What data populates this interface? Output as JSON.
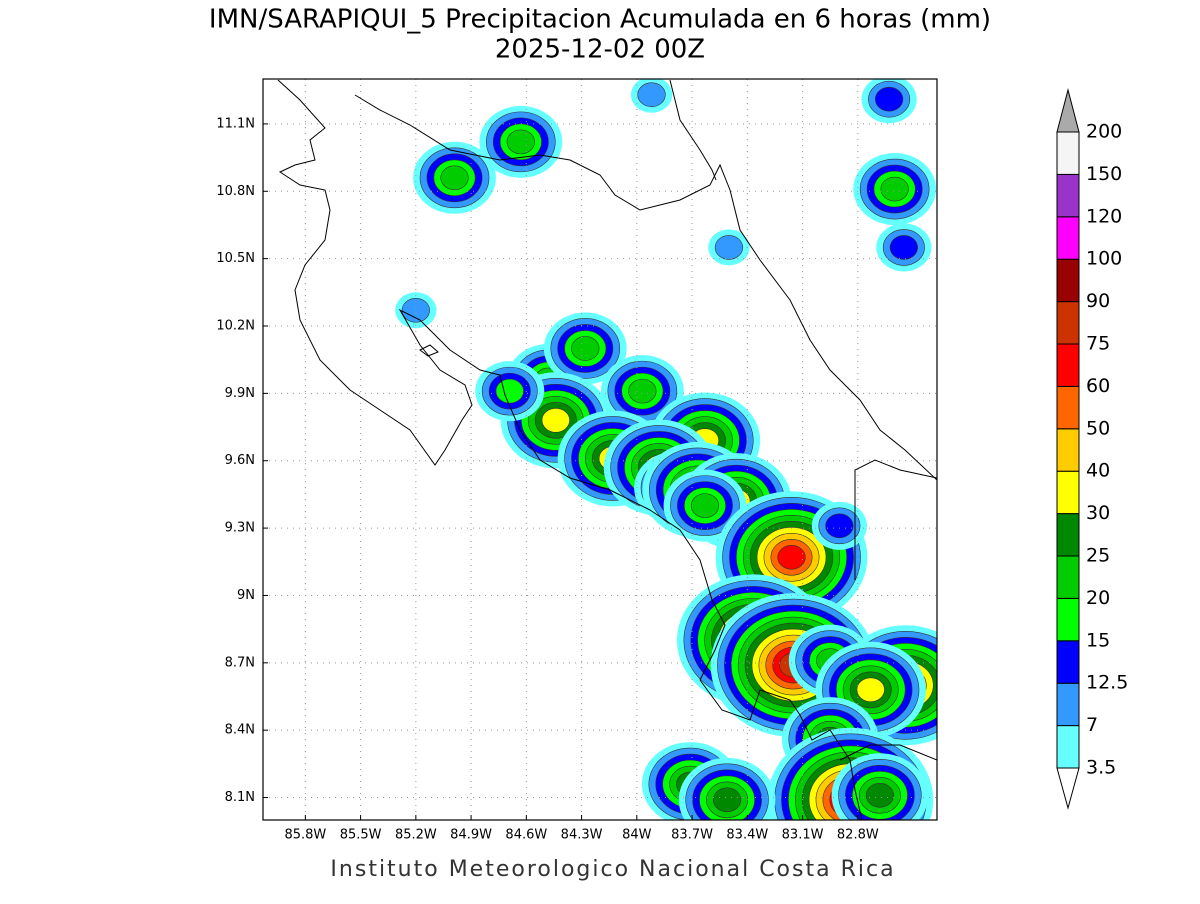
{
  "chart_data": {
    "type": "contour_map",
    "title": "IMN/SARAPIQUI_5 Precipitacion Acumulada en 6 horas (mm)",
    "subtitle": "2025-12-02 00Z",
    "footer": "Instituto Meteorologico Nacional Costa Rica",
    "xlim": [
      -86.03,
      -82.37
    ],
    "ylim": [
      8.0,
      11.3
    ],
    "xticks": [
      {
        "value": -85.8,
        "label": "85.8W"
      },
      {
        "value": -85.5,
        "label": "85.5W"
      },
      {
        "value": -85.2,
        "label": "85.2W"
      },
      {
        "value": -84.9,
        "label": "84.9W"
      },
      {
        "value": -84.6,
        "label": "84.6W"
      },
      {
        "value": -84.3,
        "label": "84.3W"
      },
      {
        "value": -84.0,
        "label": "84W"
      },
      {
        "value": -83.7,
        "label": "83.7W"
      },
      {
        "value": -83.4,
        "label": "83.4W"
      },
      {
        "value": -83.1,
        "label": "83.1W"
      },
      {
        "value": -82.8,
        "label": "82.8W"
      }
    ],
    "yticks": [
      {
        "value": 8.1,
        "label": "8.1N"
      },
      {
        "value": 8.4,
        "label": "8.4N"
      },
      {
        "value": 8.7,
        "label": "8.7N"
      },
      {
        "value": 9.0,
        "label": "9N"
      },
      {
        "value": 9.3,
        "label": "9.3N"
      },
      {
        "value": 9.6,
        "label": "9.6N"
      },
      {
        "value": 9.9,
        "label": "9.9N"
      },
      {
        "value": 10.2,
        "label": "10.2N"
      },
      {
        "value": 10.5,
        "label": "10.5N"
      },
      {
        "value": 10.8,
        "label": "10.8N"
      },
      {
        "value": 11.1,
        "label": "11.1N"
      }
    ],
    "grid": true,
    "levels": [
      3.5,
      7,
      12.5,
      15,
      20,
      25,
      30,
      40,
      50,
      60,
      75,
      90,
      100,
      120,
      150,
      200
    ],
    "colors": [
      "#ffffff",
      "#66ffff",
      "#3399ff",
      "#0000ff",
      "#00ff00",
      "#00cc00",
      "#008800",
      "#ffff00",
      "#ffcc00",
      "#ff6600",
      "#ff0000",
      "#cc3300",
      "#990000",
      "#ff00ff",
      "#9933cc",
      "#f5f5f5",
      "#aaaaaa"
    ],
    "rain_cells": [
      {
        "lon": -84.99,
        "lat": 10.86,
        "peak": 20
      },
      {
        "lon": -84.63,
        "lat": 11.02,
        "peak": 20
      },
      {
        "lon": -84.48,
        "lat": 9.96,
        "peak": 20
      },
      {
        "lon": -84.28,
        "lat": 10.1,
        "peak": 20
      },
      {
        "lon": -84.44,
        "lat": 9.78,
        "peak": 30
      },
      {
        "lon": -83.97,
        "lat": 9.91,
        "peak": 20
      },
      {
        "lon": -83.63,
        "lat": 9.69,
        "peak": 30
      },
      {
        "lon": -84.13,
        "lat": 9.61,
        "peak": 30
      },
      {
        "lon": -83.88,
        "lat": 9.57,
        "peak": 30
      },
      {
        "lon": -83.79,
        "lat": 9.48,
        "peak": 20
      },
      {
        "lon": -83.67,
        "lat": 9.47,
        "peak": 30
      },
      {
        "lon": -83.46,
        "lat": 9.42,
        "peak": 30
      },
      {
        "lon": -83.63,
        "lat": 9.4,
        "peak": 20
      },
      {
        "lon": -83.16,
        "lat": 9.17,
        "peak": 60
      },
      {
        "lon": -83.37,
        "lat": 8.8,
        "peak": 60
      },
      {
        "lon": -83.15,
        "lat": 8.69,
        "peak": 75
      },
      {
        "lon": -82.95,
        "lat": 8.71,
        "peak": 20
      },
      {
        "lon": -82.54,
        "lat": 8.6,
        "peak": 50
      },
      {
        "lon": -82.73,
        "lat": 8.58,
        "peak": 30
      },
      {
        "lon": -82.95,
        "lat": 8.36,
        "peak": 25
      },
      {
        "lon": -82.84,
        "lat": 8.09,
        "peak": 75
      },
      {
        "lon": -82.68,
        "lat": 8.11,
        "peak": 25
      },
      {
        "lon": -83.71,
        "lat": 8.16,
        "peak": 25
      },
      {
        "lon": -83.51,
        "lat": 8.09,
        "peak": 25
      },
      {
        "lon": -82.6,
        "lat": 10.81,
        "peak": 20
      },
      {
        "lon": -82.63,
        "lat": 11.21,
        "peak": 12.5
      },
      {
        "lon": -83.92,
        "lat": 11.23,
        "peak": 7
      },
      {
        "lon": -84.69,
        "lat": 9.91,
        "peak": 15
      },
      {
        "lon": -85.2,
        "lat": 10.27,
        "peak": 7
      },
      {
        "lon": -83.5,
        "lat": 10.55,
        "peak": 7
      },
      {
        "lon": -82.55,
        "lat": 10.55,
        "peak": 12.5
      },
      {
        "lon": -82.9,
        "lat": 9.31,
        "peak": 12.5
      }
    ]
  }
}
